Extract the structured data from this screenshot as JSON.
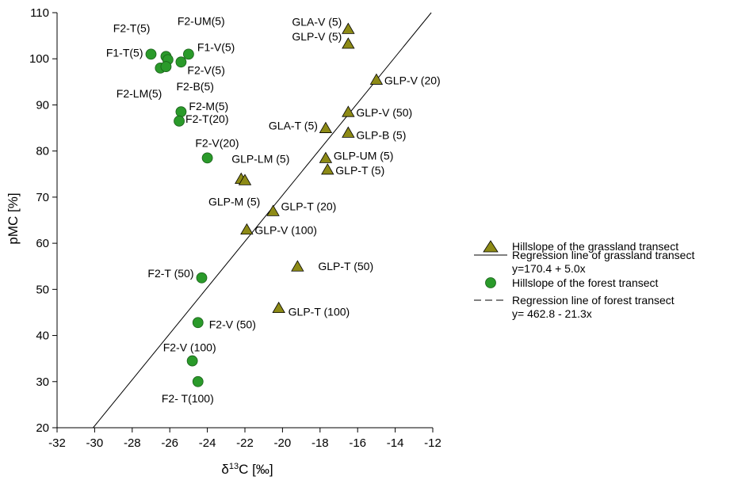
{
  "chart_data": {
    "type": "scatter",
    "xlabel": {
      "prefix": "δ",
      "sup": "13",
      "rest": "C [‰]"
    },
    "ylabel": "pMC [%]",
    "xlim": [
      -32,
      -12
    ],
    "ylim": [
      20,
      110
    ],
    "xticks": [
      -32,
      -30,
      -28,
      -26,
      -24,
      -22,
      -20,
      -18,
      -16,
      -14,
      -12
    ],
    "yticks": [
      20,
      30,
      40,
      50,
      60,
      70,
      80,
      90,
      100,
      110
    ],
    "grid": false,
    "legend_position": "right",
    "series": [
      {
        "name": "Hillslope of the grassland transect",
        "marker": "triangle",
        "color": "#8d8a16",
        "points": [
          {
            "x": -16.5,
            "y": 106.5,
            "label": "GLA-V (5)",
            "anchor": "end",
            "dx": -8,
            "dy": -4
          },
          {
            "x": -16.5,
            "y": 103.3,
            "label": "GLP-V (5)",
            "anchor": "end",
            "dx": -8,
            "dy": -4
          },
          {
            "x": -15.0,
            "y": 95.5,
            "label": "GLP-V (20)",
            "anchor": "start",
            "dx": 10,
            "dy": 6
          },
          {
            "x": -16.5,
            "y": 88.5,
            "label": "GLP-V (50)",
            "anchor": "start",
            "dx": 10,
            "dy": 6
          },
          {
            "x": -17.7,
            "y": 85.0,
            "label": "GLA-T (5)",
            "anchor": "end",
            "dx": -10,
            "dy": 2
          },
          {
            "x": -16.5,
            "y": 84.0,
            "label": "GLP-B (5)",
            "anchor": "start",
            "dx": 10,
            "dy": 8
          },
          {
            "x": -17.7,
            "y": 78.5,
            "label": "GLP-UM (5)",
            "anchor": "start",
            "dx": 10,
            "dy": 2
          },
          {
            "x": -17.6,
            "y": 76.0,
            "label": "GLP-T (5)",
            "anchor": "start",
            "dx": 10,
            "dy": 6
          },
          {
            "x": -22.2,
            "y": 74.0,
            "label": "GLP-LM (5)",
            "anchor": "start",
            "dx": -12,
            "dy": -20
          },
          {
            "x": -22.0,
            "y": 73.7,
            "label": "GLP-M (5)",
            "anchor": "start",
            "dx": -46,
            "dy": 32
          },
          {
            "x": -20.5,
            "y": 67.0,
            "label": "GLP-T (20)",
            "anchor": "start",
            "dx": 10,
            "dy": -1
          },
          {
            "x": -21.9,
            "y": 63.0,
            "label": "GLP-V (100)",
            "anchor": "start",
            "dx": 10,
            "dy": 6
          },
          {
            "x": -19.2,
            "y": 55.0,
            "label": "GLP-T (50)",
            "anchor": "start",
            "dx": 26,
            "dy": 5
          },
          {
            "x": -20.2,
            "y": 46.0,
            "label": "GLP-T (100)",
            "anchor": "start",
            "dx": 12,
            "dy": 10
          }
        ]
      },
      {
        "name": "Hillslope of the forest transect",
        "marker": "circle",
        "color": "#2a9a2a",
        "points": [
          {
            "x": -27.0,
            "y": 101.0,
            "label": "F1-T(5)",
            "anchor": "end",
            "dx": -10,
            "dy": 3
          },
          {
            "x": -26.2,
            "y": 100.5,
            "label": "F2-T(5)",
            "anchor": "end",
            "dx": -20,
            "dy": -31
          },
          {
            "x": -26.1,
            "y": 99.8,
            "label": "F2-UM(5)",
            "anchor": "start",
            "dx": 12,
            "dy": -44
          },
          {
            "x": -25.0,
            "y": 101.0,
            "label": "F1-V(5)",
            "anchor": "start",
            "dx": 11,
            "dy": -4
          },
          {
            "x": -25.4,
            "y": 99.3,
            "label": "F2-V(5)",
            "anchor": "start",
            "dx": 8,
            "dy": 15
          },
          {
            "x": -26.5,
            "y": 98.0,
            "label": "F2-LM(5)",
            "anchor": "end",
            "dx": 2,
            "dy": 37
          },
          {
            "x": -26.2,
            "y": 98.3,
            "label": "F2-B(5)",
            "anchor": "start",
            "dx": 13,
            "dy": 30
          },
          {
            "x": -25.4,
            "y": 88.5,
            "label": "F2-M(5)",
            "anchor": "start",
            "dx": 10,
            "dy": -2
          },
          {
            "x": -25.5,
            "y": 86.5,
            "label": "F2-T(20)",
            "anchor": "start",
            "dx": 8,
            "dy": 2
          },
          {
            "x": -24.0,
            "y": 78.5,
            "label": "F2-V(20)",
            "anchor": "end",
            "dx": 40,
            "dy": -14
          },
          {
            "x": -24.3,
            "y": 52.5,
            "label": "F2-T (50)",
            "anchor": "end",
            "dx": -10,
            "dy": -1
          },
          {
            "x": -24.5,
            "y": 42.8,
            "label": "F2-V (50)",
            "anchor": "start",
            "dx": 14,
            "dy": 7
          },
          {
            "x": -24.8,
            "y": 34.5,
            "label": "F2-V (100)",
            "anchor": "end",
            "dx": 30,
            "dy": -12
          },
          {
            "x": -24.5,
            "y": 30.0,
            "label": "F2- T(100)",
            "anchor": "end",
            "dx": 20,
            "dy": 26
          }
        ]
      }
    ],
    "regressions": [
      {
        "name": "Regression line of grassland transect",
        "equation": "y=170.4 + 5.0x",
        "intercept": 170.4,
        "slope": 5.0,
        "style": "solid"
      },
      {
        "name": "Regression line of forest transect",
        "equation": "y= 462.8 - 21.3x",
        "intercept": 462.8,
        "slope": -21.3,
        "style": "dashed"
      }
    ]
  }
}
